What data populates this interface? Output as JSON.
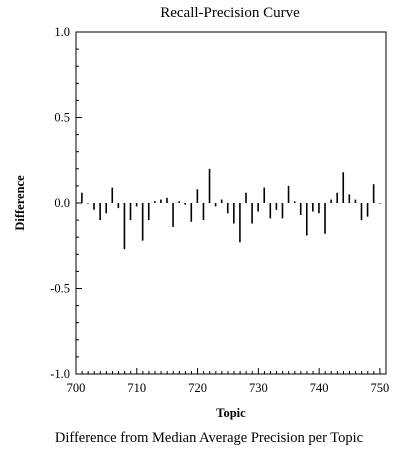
{
  "chart_data": {
    "type": "bar",
    "title": "Recall-Precision Curve",
    "xlabel": "Topic",
    "ylabel": "Difference",
    "caption": "Difference from Median Average Precision per Topic",
    "xlim": [
      700,
      751
    ],
    "ylim": [
      -1.0,
      1.0
    ],
    "xticks": [
      700,
      710,
      720,
      730,
      740,
      750
    ],
    "xtick_labels": [
      "700",
      "710",
      "720",
      "730",
      "740",
      "750"
    ],
    "yticks": [
      -1.0,
      -0.5,
      0.0,
      0.5,
      1.0
    ],
    "ytick_labels": [
      "-1.0",
      "-0.5",
      "0.0",
      "0.5",
      "1.0"
    ],
    "grid": false,
    "bar_color": "#000000",
    "x": [
      701,
      702,
      703,
      704,
      705,
      706,
      707,
      708,
      709,
      710,
      711,
      712,
      713,
      714,
      715,
      716,
      717,
      718,
      719,
      720,
      721,
      722,
      723,
      724,
      725,
      726,
      727,
      728,
      729,
      730,
      731,
      732,
      733,
      734,
      735,
      736,
      737,
      738,
      739,
      740,
      741,
      742,
      743,
      744,
      745,
      746,
      747,
      748,
      749,
      750
    ],
    "values": [
      0.06,
      0.0,
      -0.04,
      -0.1,
      -0.06,
      0.09,
      -0.03,
      -0.27,
      -0.1,
      -0.02,
      -0.22,
      -0.1,
      0.01,
      0.02,
      0.03,
      -0.14,
      0.01,
      -0.01,
      -0.11,
      0.08,
      -0.1,
      0.2,
      -0.02,
      0.02,
      -0.06,
      -0.12,
      -0.23,
      0.06,
      -0.12,
      -0.05,
      0.09,
      -0.09,
      -0.04,
      -0.09,
      0.1,
      0.01,
      -0.07,
      -0.19,
      -0.05,
      -0.06,
      -0.18,
      0.02,
      0.06,
      0.18,
      0.05,
      0.02,
      -0.1,
      -0.08,
      0.11,
      0.0
    ]
  }
}
